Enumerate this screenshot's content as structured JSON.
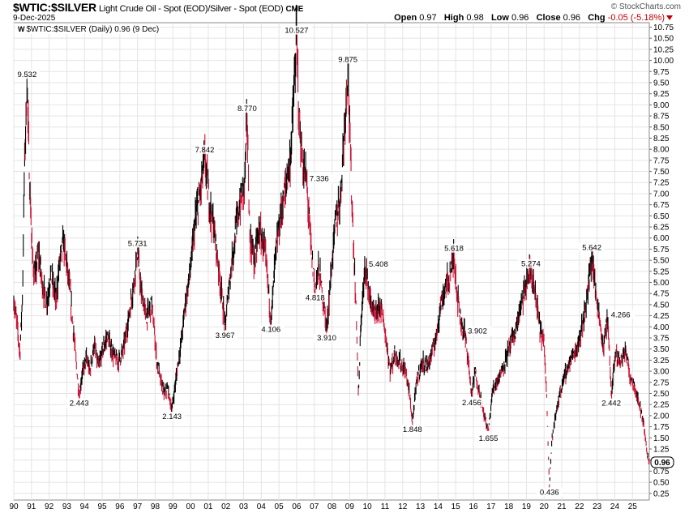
{
  "header": {
    "symbol": "$WTIC:$SILVER",
    "description": "Light Crude Oil - Spot (EOD)/Silver - Spot (EOD)",
    "exchange": "CME",
    "date": "9-Dec-2025",
    "brand": "© StockCharts.com",
    "open_label": "Open",
    "open": "0.97",
    "high_label": "High",
    "high": "0.98",
    "low_label": "Low",
    "low": "0.96",
    "close_label": "Close",
    "close": "0.96",
    "chg_label": "Chg",
    "chg": "-0.05 (-5.18%)",
    "chg_icon": "down-triangle-icon"
  },
  "legend": {
    "mark": "W",
    "text": "$WTIC:$SILVER (Daily) 0.96 (9 Dec)"
  },
  "colors": {
    "up": "#000000",
    "down": "#cc1133",
    "grid": "#e4e4e4",
    "chg": "#c00000"
  },
  "chart_data": {
    "type": "line",
    "title": "$WTIC:$SILVER Light Crude Oil - Spot (EOD)/Silver - Spot (EOD)",
    "series_name": "$WTIC:$SILVER (Daily)",
    "x_tick_labels": [
      "90",
      "91",
      "92",
      "93",
      "94",
      "95",
      "96",
      "97",
      "98",
      "99",
      "00",
      "01",
      "02",
      "03",
      "04",
      "05",
      "06",
      "07",
      "08",
      "09",
      "10",
      "11",
      "12",
      "13",
      "14",
      "15",
      "16",
      "17",
      "18",
      "19",
      "20",
      "21",
      "22",
      "23",
      "24",
      "25"
    ],
    "x_range": [
      1990.0,
      2025.95
    ],
    "y_ticks": [
      0.25,
      0.5,
      0.75,
      1.0,
      1.25,
      1.5,
      1.75,
      2.0,
      2.25,
      2.5,
      2.75,
      3.0,
      3.25,
      3.5,
      3.75,
      4.0,
      4.25,
      4.5,
      4.75,
      5.0,
      5.25,
      5.5,
      5.75,
      6.0,
      6.25,
      6.5,
      6.75,
      7.0,
      7.25,
      7.5,
      7.75,
      8.0,
      8.25,
      8.5,
      8.75,
      9.0,
      9.25,
      9.5,
      9.75,
      10.0,
      10.25,
      10.5,
      10.75
    ],
    "y_tick_labels": [
      "0.25",
      "0.50",
      "0.75",
      "1.00",
      "1.25",
      "1.50",
      "1.75",
      "2.00",
      "2.25",
      "2.50",
      "2.75",
      "3.00",
      "3.25",
      "3.50",
      "3.75",
      "4.00",
      "4.25",
      "4.50",
      "4.75",
      "5.00",
      "5.25",
      "5.50",
      "5.75",
      "6.00",
      "6.25",
      "6.50",
      "6.75",
      "7.00",
      "7.25",
      "7.50",
      "7.75",
      "8.00",
      "8.25",
      "8.50",
      "8.75",
      "9.00",
      "9.25",
      "9.50",
      "9.75",
      "10.00",
      "10.25",
      "10.50",
      "10.75"
    ],
    "y_range": [
      0.1,
      10.85
    ],
    "grid": true,
    "last_value": 0.96,
    "last_value_label": "0.96",
    "annotations": [
      {
        "x": 1990.75,
        "y": 9.532,
        "label": "9.532",
        "pos": "above"
      },
      {
        "x": 1993.7,
        "y": 2.443,
        "label": "2.443",
        "pos": "below"
      },
      {
        "x": 1997.0,
        "y": 5.731,
        "label": "5.731",
        "pos": "above"
      },
      {
        "x": 1998.95,
        "y": 2.143,
        "label": "2.143",
        "pos": "below"
      },
      {
        "x": 2000.8,
        "y": 7.842,
        "label": "7.842",
        "pos": "above"
      },
      {
        "x": 2001.95,
        "y": 3.967,
        "label": "3.967",
        "pos": "below"
      },
      {
        "x": 2003.2,
        "y": 8.77,
        "label": "8.770",
        "pos": "above"
      },
      {
        "x": 2004.55,
        "y": 4.106,
        "label": "4.106",
        "pos": "below"
      },
      {
        "x": 2006.0,
        "y": 10.527,
        "label": "10.527",
        "pos": "above"
      },
      {
        "x": 2006.55,
        "y": 7.336,
        "label": "7.336",
        "pos": "right"
      },
      {
        "x": 2007.05,
        "y": 4.818,
        "label": "4.818",
        "pos": "below"
      },
      {
        "x": 2007.7,
        "y": 3.91,
        "label": "3.910",
        "pos": "below"
      },
      {
        "x": 2008.9,
        "y": 9.875,
        "label": "9.875",
        "pos": "above"
      },
      {
        "x": 2009.9,
        "y": 5.408,
        "label": "5.408",
        "pos": "right"
      },
      {
        "x": 2012.55,
        "y": 1.848,
        "label": "1.848",
        "pos": "below"
      },
      {
        "x": 2014.9,
        "y": 5.618,
        "label": "5.618",
        "pos": "above"
      },
      {
        "x": 2015.5,
        "y": 3.902,
        "label": "3.902",
        "pos": "right"
      },
      {
        "x": 2015.9,
        "y": 2.456,
        "label": "2.456",
        "pos": "below"
      },
      {
        "x": 2016.85,
        "y": 1.655,
        "label": "1.655",
        "pos": "below"
      },
      {
        "x": 2019.25,
        "y": 5.274,
        "label": "5.274",
        "pos": "above"
      },
      {
        "x": 2020.3,
        "y": 0.436,
        "label": "0.436",
        "pos": "below"
      },
      {
        "x": 2022.7,
        "y": 5.642,
        "label": "5.642",
        "pos": "above"
      },
      {
        "x": 2023.6,
        "y": 4.266,
        "label": "4.266",
        "pos": "right"
      },
      {
        "x": 2023.8,
        "y": 2.442,
        "label": "2.442",
        "pos": "below"
      }
    ],
    "anchors": [
      [
        1990.0,
        4.6
      ],
      [
        1990.2,
        4.0
      ],
      [
        1990.35,
        3.4
      ],
      [
        1990.5,
        4.8
      ],
      [
        1990.6,
        7.5
      ],
      [
        1990.75,
        9.532
      ],
      [
        1990.9,
        7.2
      ],
      [
        1991.05,
        5.6
      ],
      [
        1991.2,
        5.1
      ],
      [
        1991.4,
        5.7
      ],
      [
        1991.6,
        5.0
      ],
      [
        1991.85,
        4.5
      ],
      [
        1992.1,
        5.2
      ],
      [
        1992.4,
        4.6
      ],
      [
        1992.6,
        5.5
      ],
      [
        1992.8,
        5.9
      ],
      [
        1993.0,
        5.4
      ],
      [
        1993.2,
        4.7
      ],
      [
        1993.4,
        3.8
      ],
      [
        1993.55,
        3.1
      ],
      [
        1993.7,
        2.443
      ],
      [
        1993.85,
        2.9
      ],
      [
        1994.1,
        3.3
      ],
      [
        1994.3,
        3.0
      ],
      [
        1994.55,
        3.6
      ],
      [
        1994.8,
        3.1
      ],
      [
        1995.05,
        3.5
      ],
      [
        1995.3,
        3.8
      ],
      [
        1995.6,
        3.4
      ],
      [
        1995.9,
        3.2
      ],
      [
        1996.2,
        3.5
      ],
      [
        1996.5,
        4.2
      ],
      [
        1996.8,
        5.0
      ],
      [
        1997.0,
        5.731
      ],
      [
        1997.2,
        4.8
      ],
      [
        1997.5,
        4.2
      ],
      [
        1997.8,
        4.5
      ],
      [
        1997.95,
        3.9
      ],
      [
        1998.1,
        3.2
      ],
      [
        1998.3,
        2.8
      ],
      [
        1998.5,
        2.5
      ],
      [
        1998.7,
        2.6
      ],
      [
        1998.95,
        2.143
      ],
      [
        1999.2,
        2.9
      ],
      [
        1999.45,
        3.6
      ],
      [
        1999.7,
        4.5
      ],
      [
        2000.0,
        5.3
      ],
      [
        2000.3,
        6.5
      ],
      [
        2000.55,
        7.0
      ],
      [
        2000.8,
        7.842
      ],
      [
        2001.05,
        6.8
      ],
      [
        2001.3,
        6.3
      ],
      [
        2001.6,
        5.3
      ],
      [
        2001.8,
        4.6
      ],
      [
        2001.95,
        3.967
      ],
      [
        2002.2,
        5.0
      ],
      [
        2002.5,
        6.0
      ],
      [
        2002.8,
        6.8
      ],
      [
        2003.05,
        7.2
      ],
      [
        2003.2,
        8.77
      ],
      [
        2003.35,
        6.0
      ],
      [
        2003.6,
        5.5
      ],
      [
        2003.9,
        6.2
      ],
      [
        2004.2,
        5.7
      ],
      [
        2004.4,
        4.9
      ],
      [
        2004.55,
        4.106
      ],
      [
        2004.8,
        5.6
      ],
      [
        2005.1,
        6.5
      ],
      [
        2005.4,
        7.2
      ],
      [
        2005.65,
        7.8
      ],
      [
        2005.85,
        9.3
      ],
      [
        2006.0,
        10.527
      ],
      [
        2006.15,
        8.6
      ],
      [
        2006.35,
        7.6
      ],
      [
        2006.55,
        7.336
      ],
      [
        2006.75,
        6.2
      ],
      [
        2006.9,
        5.4
      ],
      [
        2007.05,
        4.818
      ],
      [
        2007.25,
        5.3
      ],
      [
        2007.45,
        4.8
      ],
      [
        2007.7,
        3.91
      ],
      [
        2007.95,
        5.2
      ],
      [
        2008.2,
        6.4
      ],
      [
        2008.45,
        6.8
      ],
      [
        2008.65,
        8.1
      ],
      [
        2008.9,
        9.875
      ],
      [
        2009.05,
        7.8
      ],
      [
        2009.25,
        5.5
      ],
      [
        2009.4,
        4.0
      ],
      [
        2009.5,
        2.4
      ],
      [
        2009.65,
        4.2
      ],
      [
        2009.9,
        5.408
      ],
      [
        2010.15,
        4.6
      ],
      [
        2010.45,
        4.2
      ],
      [
        2010.75,
        4.5
      ],
      [
        2011.0,
        3.9
      ],
      [
        2011.3,
        3.0
      ],
      [
        2011.55,
        3.4
      ],
      [
        2011.85,
        3.2
      ],
      [
        2012.15,
        3.0
      ],
      [
        2012.35,
        2.6
      ],
      [
        2012.55,
        1.848
      ],
      [
        2012.8,
        2.8
      ],
      [
        2013.1,
        3.2
      ],
      [
        2013.4,
        3.1
      ],
      [
        2013.65,
        3.4
      ],
      [
        2013.9,
        3.8
      ],
      [
        2014.15,
        4.5
      ],
      [
        2014.45,
        4.9
      ],
      [
        2014.7,
        5.2
      ],
      [
        2014.9,
        5.618
      ],
      [
        2015.1,
        4.7
      ],
      [
        2015.3,
        4.1
      ],
      [
        2015.5,
        3.902
      ],
      [
        2015.7,
        3.3
      ],
      [
        2015.9,
        2.456
      ],
      [
        2016.1,
        3.0
      ],
      [
        2016.3,
        2.6
      ],
      [
        2016.55,
        2.1
      ],
      [
        2016.85,
        1.655
      ],
      [
        2017.1,
        2.6
      ],
      [
        2017.35,
        2.8
      ],
      [
        2017.6,
        3.0
      ],
      [
        2017.85,
        3.3
      ],
      [
        2018.1,
        3.6
      ],
      [
        2018.4,
        3.9
      ],
      [
        2018.65,
        4.4
      ],
      [
        2018.9,
        4.8
      ],
      [
        2019.25,
        5.274
      ],
      [
        2019.5,
        4.7
      ],
      [
        2019.75,
        4.0
      ],
      [
        2020.0,
        3.6
      ],
      [
        2020.15,
        2.4
      ],
      [
        2020.3,
        0.436
      ],
      [
        2020.45,
        1.5
      ],
      [
        2020.7,
        2.1
      ],
      [
        2020.95,
        2.6
      ],
      [
        2021.25,
        3.0
      ],
      [
        2021.55,
        3.3
      ],
      [
        2021.85,
        3.5
      ],
      [
        2022.15,
        4.0
      ],
      [
        2022.4,
        4.6
      ],
      [
        2022.6,
        5.2
      ],
      [
        2022.7,
        5.642
      ],
      [
        2022.9,
        4.8
      ],
      [
        2023.1,
        4.3
      ],
      [
        2023.35,
        3.5
      ],
      [
        2023.6,
        4.266
      ],
      [
        2023.8,
        2.442
      ],
      [
        2024.05,
        3.4
      ],
      [
        2024.3,
        3.2
      ],
      [
        2024.6,
        3.5
      ],
      [
        2024.85,
        2.9
      ],
      [
        2025.1,
        2.7
      ],
      [
        2025.35,
        2.3
      ],
      [
        2025.6,
        1.9
      ],
      [
        2025.85,
        1.1
      ],
      [
        2025.95,
        0.96
      ]
    ]
  }
}
